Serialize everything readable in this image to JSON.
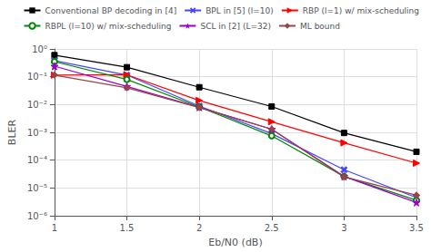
{
  "chart_data": {
    "type": "line",
    "x": [
      1.0,
      1.5,
      2.0,
      2.5,
      3.0,
      3.5
    ],
    "series": [
      {
        "name": "Conventional BP decoding in [4]",
        "color": "#000000",
        "marker": "square",
        "values": [
          0.6,
          0.22,
          0.042,
          0.0085,
          0.00095,
          0.0002
        ]
      },
      {
        "name": "BPL in [5] (l=10)",
        "color": "#4444ff",
        "marker": "x",
        "values": [
          0.38,
          0.115,
          0.0088,
          0.0009,
          4.5e-05,
          4.5e-06
        ]
      },
      {
        "name": "RBP (l=1) w/ mix-scheduling",
        "color": "#ff0000",
        "marker": "triangle-right",
        "values": [
          0.115,
          0.118,
          0.014,
          0.0024,
          0.00042,
          7.8e-05
        ]
      },
      {
        "name": "RBPL (l=10) w/ mix-scheduling",
        "color": "#008800",
        "marker": "open-circle",
        "values": [
          0.35,
          0.08,
          0.0082,
          0.00075,
          2.6e-05,
          3.6e-06
        ]
      },
      {
        "name": "SCL in [2] (L=32)",
        "color": "#9900cc",
        "marker": "star",
        "values": [
          0.24,
          0.045,
          0.008,
          0.0013,
          2.6e-05,
          3e-06
        ]
      },
      {
        "name": "ML bound",
        "color": "#994444",
        "marker": "diamond",
        "values": [
          0.115,
          0.04,
          0.0078,
          0.0013,
          2.5e-05,
          5.5e-06
        ]
      }
    ],
    "xlabel": "Eb/N0 (dB)",
    "ylabel": "BLER",
    "xlim": [
      1.0,
      3.5
    ],
    "ylim": [
      1e-06,
      1.0
    ],
    "xticks": [
      1.0,
      1.5,
      2.0,
      2.5,
      3.0,
      3.5
    ],
    "yticks": [
      {
        "value": 1e-06,
        "label": "10⁻⁶"
      },
      {
        "value": 1e-05,
        "label": "10⁻⁵"
      },
      {
        "value": 0.0001,
        "label": "10⁻⁴"
      },
      {
        "value": 0.001,
        "label": "10⁻³"
      },
      {
        "value": 0.01,
        "label": "10⁻²"
      },
      {
        "value": 0.1,
        "label": "10⁻¹"
      },
      {
        "value": 1,
        "label": "10⁰"
      }
    ],
    "log": "y",
    "grid": true,
    "legend": "upper right"
  }
}
